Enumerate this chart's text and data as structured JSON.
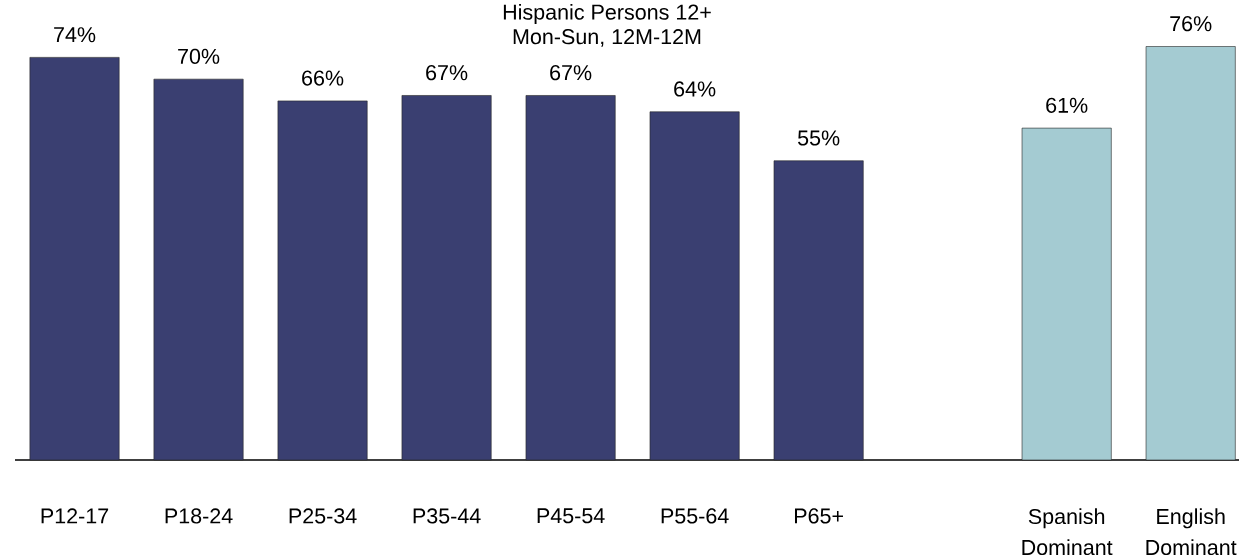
{
  "chart_data": {
    "type": "bar",
    "title": "Hispanic Persons 12+",
    "subtitle": "Mon-Sun, 12M-12M",
    "categories": [
      "P12-17",
      "P18-24",
      "P25-34",
      "P35-44",
      "P45-54",
      "P55-64",
      "P65+",
      null,
      "Spanish Dominant",
      "English Dominant"
    ],
    "values": [
      74,
      70,
      66,
      67,
      67,
      64,
      55,
      null,
      61,
      76
    ],
    "colors": [
      "#3a3f71",
      "#3a3f71",
      "#3a3f71",
      "#3a3f71",
      "#3a3f71",
      "#3a3f71",
      "#3a3f71",
      null,
      "#a4cbd2",
      "#a4cbd2"
    ],
    "value_labels": [
      "74%",
      "70%",
      "66%",
      "67%",
      "67%",
      "64%",
      "55%",
      null,
      "61%",
      "76%"
    ],
    "tick_labels": "x"
  }
}
